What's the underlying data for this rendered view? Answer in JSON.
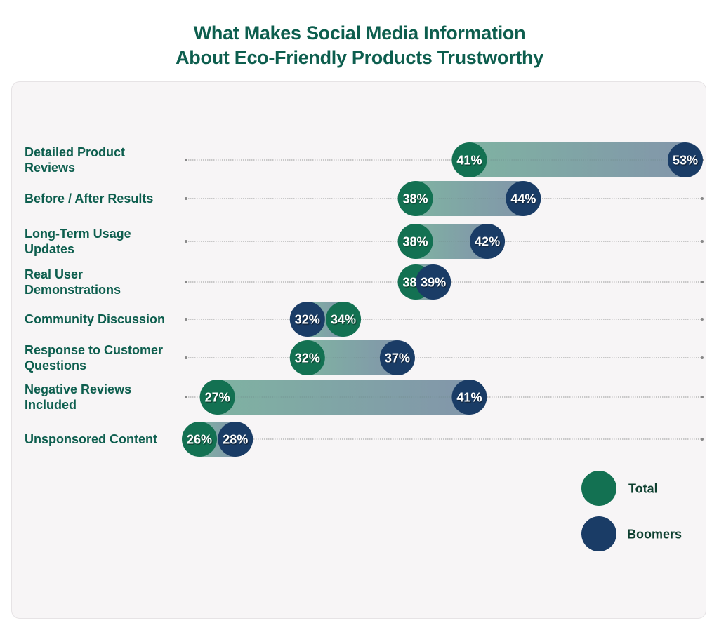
{
  "title_lines": [
    "What Makes Social Media Information",
    "About Eco-Friendly Products Trustworthy"
  ],
  "colors": {
    "total": "#137152",
    "boomers": "#1a3c66",
    "bar_start": "#7fb2a2",
    "bar_end": "#8296aa",
    "label_text": "#0d5e4e",
    "panel_bg": "#f7f5f6"
  },
  "legend": [
    {
      "key": "total",
      "label": "Total"
    },
    {
      "key": "boomers",
      "label": "Boomers"
    }
  ],
  "chart_data": {
    "type": "dumbbell",
    "title": "What Makes Social Media Information About Eco-Friendly Products Trustworthy",
    "xlabel": "",
    "ylabel": "",
    "unit": "%",
    "xlim": [
      25,
      54
    ],
    "grid": false,
    "legend_position": "bottom-right",
    "categories": [
      {
        "label_lines": [
          "Detailed Product",
          "Reviews"
        ]
      },
      {
        "label_lines": [
          "Before / After Results"
        ]
      },
      {
        "label_lines": [
          "Long-Term Usage",
          "Updates"
        ]
      },
      {
        "label_lines": [
          "Real User",
          "Demonstrations"
        ]
      },
      {
        "label_lines": [
          "Community Discussion"
        ]
      },
      {
        "label_lines": [
          "Response to Customer",
          "Questions"
        ]
      },
      {
        "label_lines": [
          "Negative Reviews",
          "Included"
        ]
      },
      {
        "label_lines": [
          "Unsponsored Content"
        ]
      }
    ],
    "series": [
      {
        "name": "Total",
        "key": "total",
        "values": [
          41,
          38,
          38,
          38,
          34,
          32,
          27,
          26
        ]
      },
      {
        "name": "Boomers",
        "key": "boomers",
        "values": [
          53,
          44,
          42,
          39,
          32,
          37,
          41,
          28
        ]
      }
    ]
  }
}
